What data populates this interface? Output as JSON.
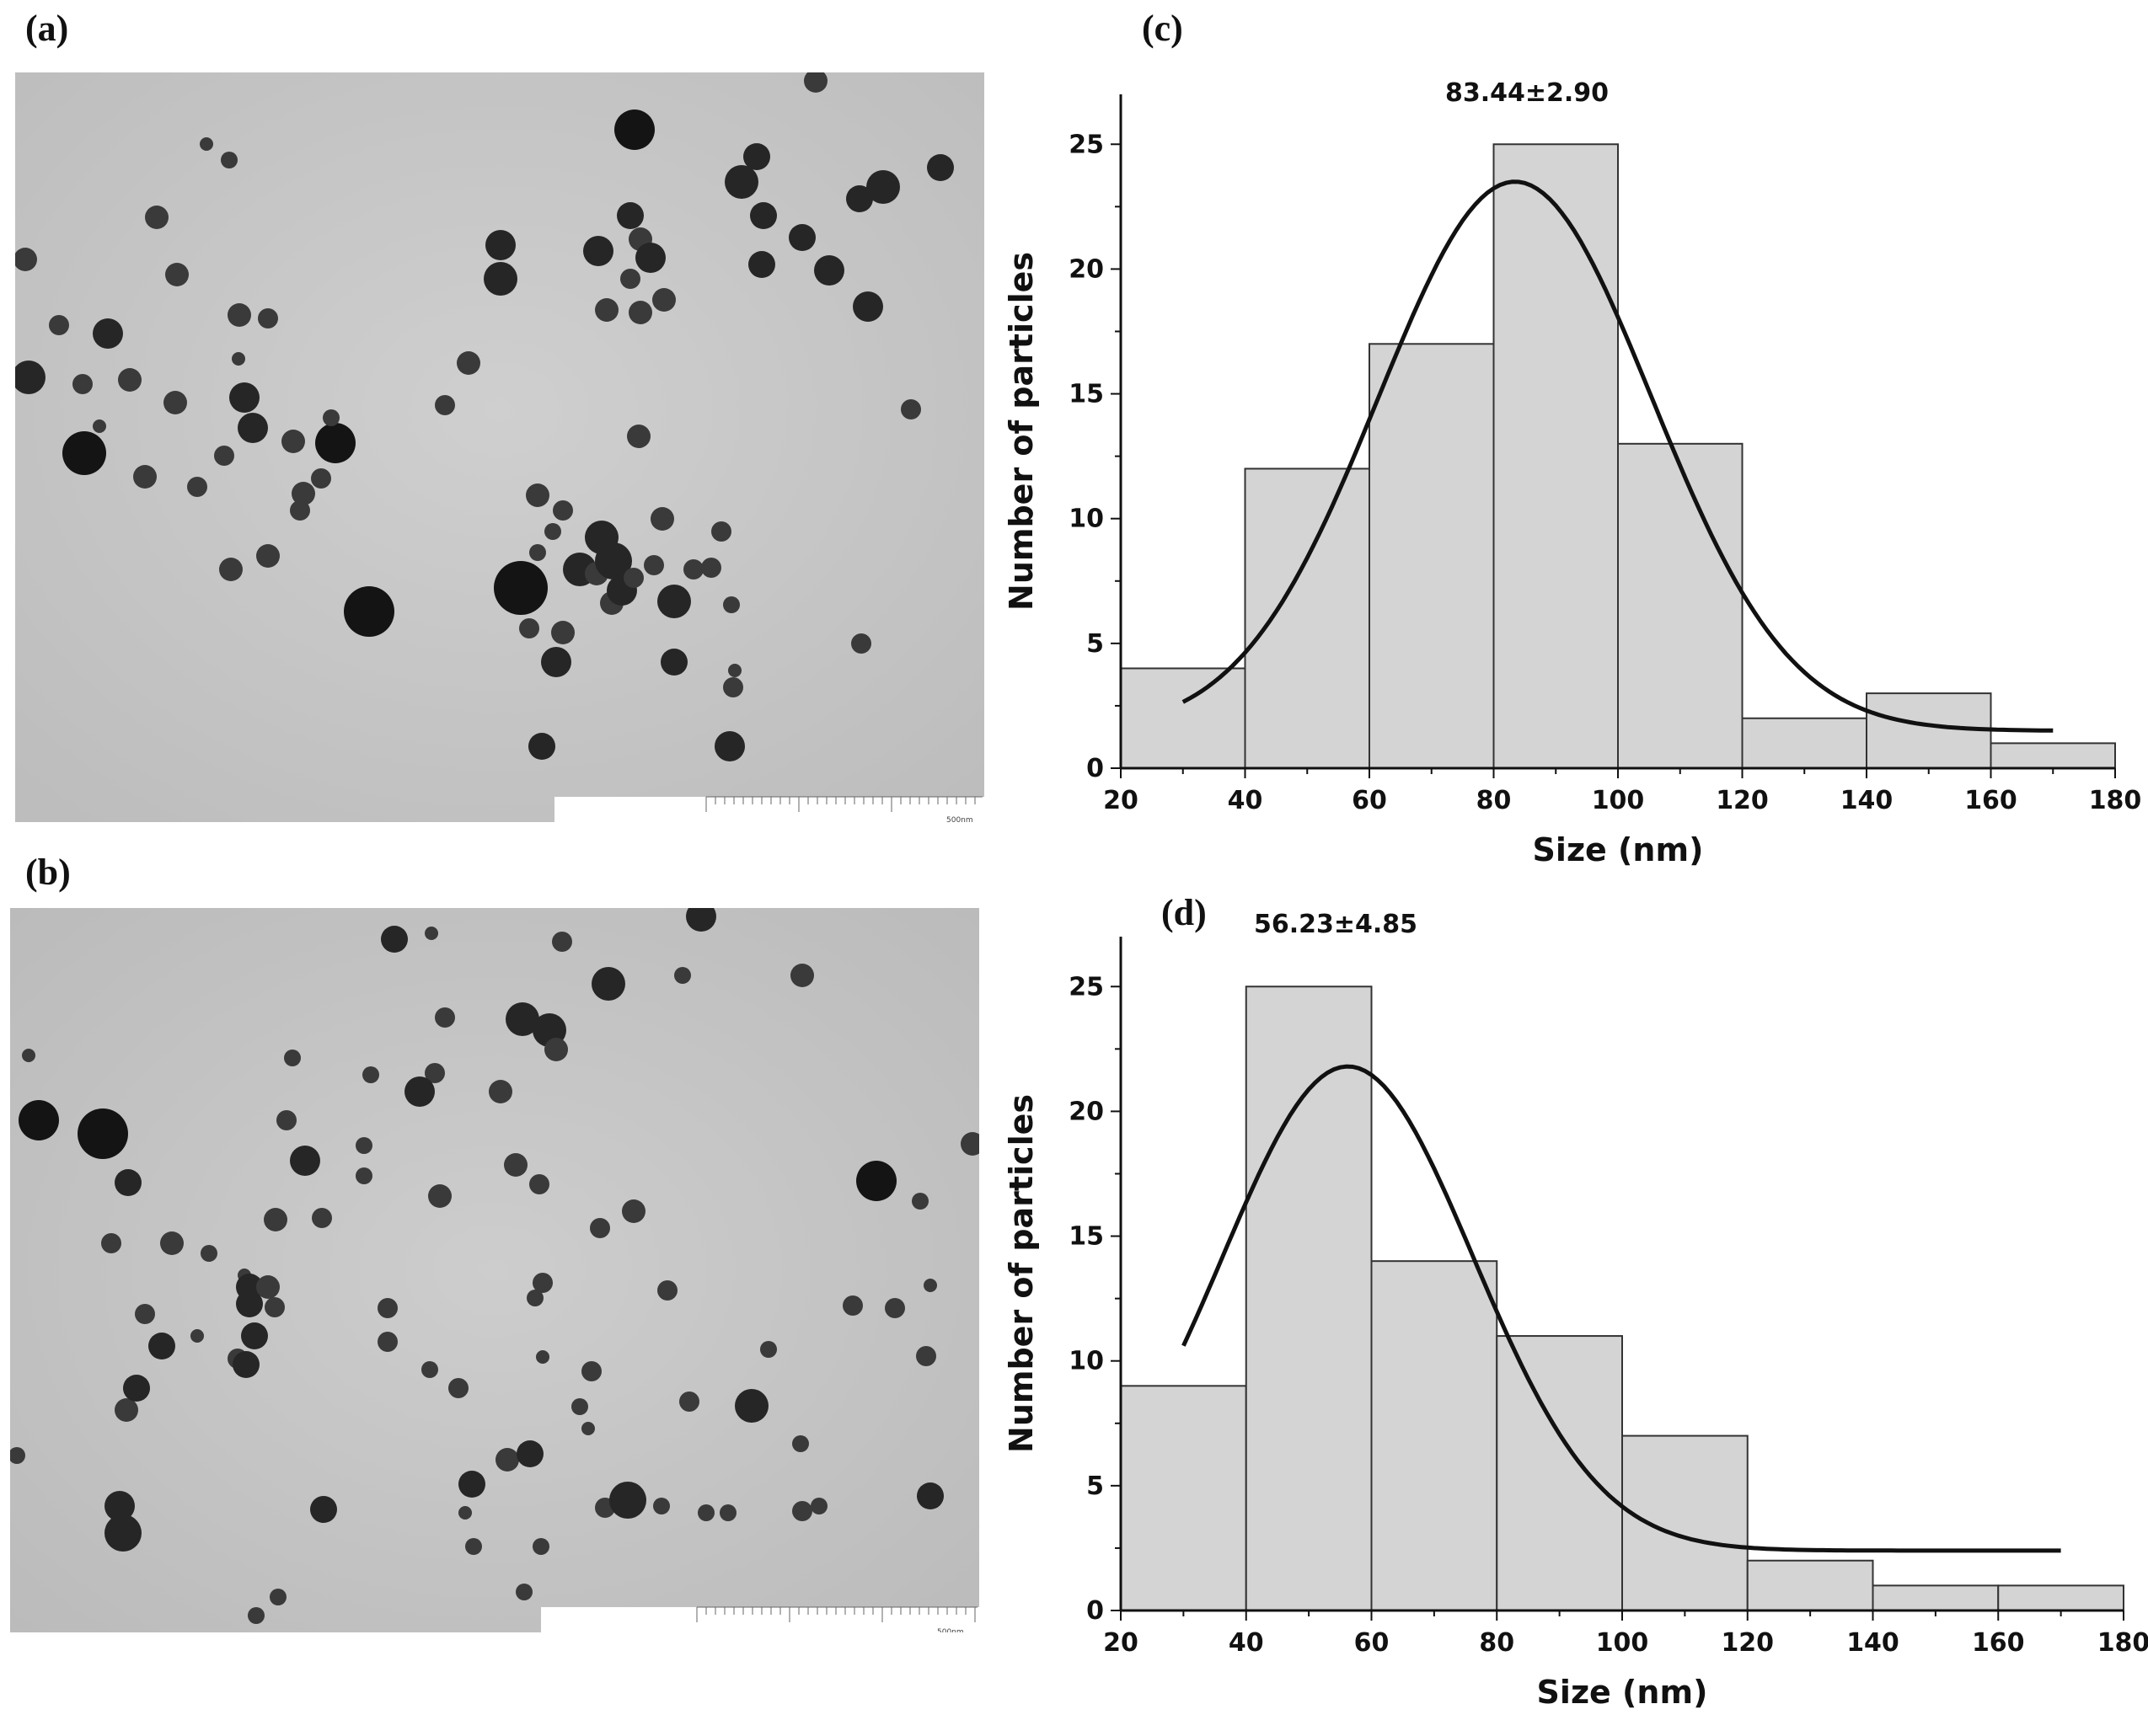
{
  "panels": {
    "a": {
      "label": "(a)"
    },
    "b": {
      "label": "(b)"
    },
    "c": {
      "label": "(c)"
    },
    "d": {
      "label": "(d)"
    }
  },
  "micrographs": {
    "a": {
      "scale_label": "500nm"
    },
    "b": {
      "scale_label": "500nm"
    }
  },
  "colors": {
    "bar_fill": "#d4d4d4",
    "bar_stroke": "#333333",
    "curve": "#111111",
    "particle": "#2a2a2a"
  },
  "chart_data": [
    {
      "id": "c",
      "type": "bar",
      "title": "",
      "annotation": "83.44±2.90",
      "xlabel": "Size (nm)",
      "ylabel": "Number of particles",
      "bin_edges": [
        20,
        40,
        60,
        80,
        100,
        120,
        140,
        160,
        180
      ],
      "values": [
        4,
        12,
        17,
        25,
        13,
        2,
        3,
        1
      ],
      "xlim": [
        20,
        180
      ],
      "ylim": [
        0,
        27
      ],
      "xticks": [
        20,
        40,
        60,
        80,
        100,
        120,
        140,
        160,
        180
      ],
      "yticks": [
        0,
        5,
        10,
        15,
        20,
        25
      ],
      "fit": {
        "type": "gaussian",
        "x_range": [
          30,
          170
        ],
        "center": 83.44,
        "peak": 22.0,
        "sigma": 22,
        "baseline": 1.5
      }
    },
    {
      "id": "d",
      "type": "bar",
      "title": "",
      "annotation": "56.23±4.85",
      "xlabel": "Size (nm)",
      "ylabel": "Number of particles",
      "bin_edges": [
        20,
        40,
        60,
        80,
        100,
        120,
        140,
        160,
        180
      ],
      "values": [
        9,
        25,
        14,
        11,
        7,
        2,
        1,
        1
      ],
      "xlim": [
        20,
        180
      ],
      "ylim": [
        0,
        27
      ],
      "xticks": [
        20,
        40,
        60,
        80,
        100,
        120,
        140,
        160,
        180
      ],
      "yticks": [
        0,
        5,
        10,
        15,
        20,
        25
      ],
      "fit": {
        "type": "gaussian",
        "x_range": [
          30,
          170
        ],
        "center": 56.23,
        "peak": 19.4,
        "sigma": 20,
        "baseline": 2.4
      }
    }
  ]
}
